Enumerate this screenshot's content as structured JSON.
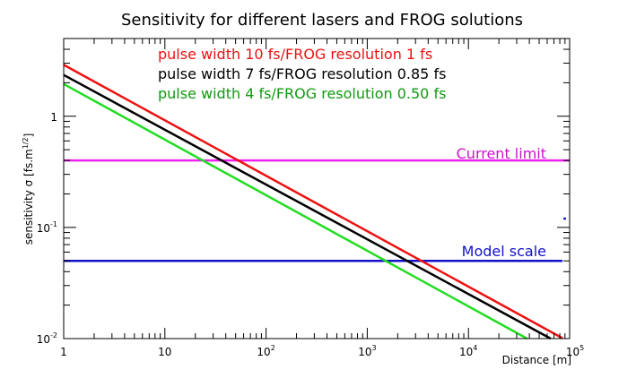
{
  "chart_data": {
    "type": "line",
    "title": "Sensitivity for different lasers and FROG solutions",
    "xlabel": "Distance [m]",
    "ylabel": "sensitivity σ [fs.m",
    "ylabel_exponent": "1/2",
    "ylabel_close": "]",
    "xscale": "log",
    "yscale": "log",
    "xlim": [
      1,
      100000
    ],
    "ylim": [
      0.01,
      5
    ],
    "grid": false,
    "x_ticks": [
      {
        "base": "1",
        "exp": ""
      },
      {
        "base": "10",
        "exp": ""
      },
      {
        "base": "10",
        "exp": "2"
      },
      {
        "base": "10",
        "exp": "3"
      },
      {
        "base": "10",
        "exp": "4"
      },
      {
        "base": "10",
        "exp": "5"
      }
    ],
    "y_ticks": [
      {
        "base": "10",
        "exp": "-2"
      },
      {
        "base": "10",
        "exp": "-1"
      },
      {
        "base": "1",
        "exp": ""
      }
    ],
    "series": [
      {
        "name": "pulse width 10 fs/FROG resolution 1 fs",
        "color": "#ee1111",
        "x": [
          1,
          85000
        ],
        "y": [
          2.9,
          0.0101
        ]
      },
      {
        "name": "pulse width 7 fs/FROG resolution 0.85 fs",
        "color": "#000000",
        "x": [
          1,
          65000
        ],
        "y": [
          2.35,
          0.01
        ]
      },
      {
        "name": "pulse width 4 fs/FROG resolution 0.50 fs",
        "color": "#22dd22",
        "x": [
          1,
          38000
        ],
        "y": [
          1.95,
          0.01
        ]
      }
    ],
    "reference_lines": [
      {
        "label": "Current limit",
        "color": "#ee22ee",
        "y": 0.4,
        "x": [
          1,
          100000
        ]
      },
      {
        "label": "Model scale",
        "color": "#1111cc",
        "y": 0.05,
        "x": [
          1,
          85000
        ]
      }
    ],
    "marker": {
      "color": "#1111cc",
      "y": 0.12,
      "x": [
        87000,
        92000
      ]
    }
  }
}
